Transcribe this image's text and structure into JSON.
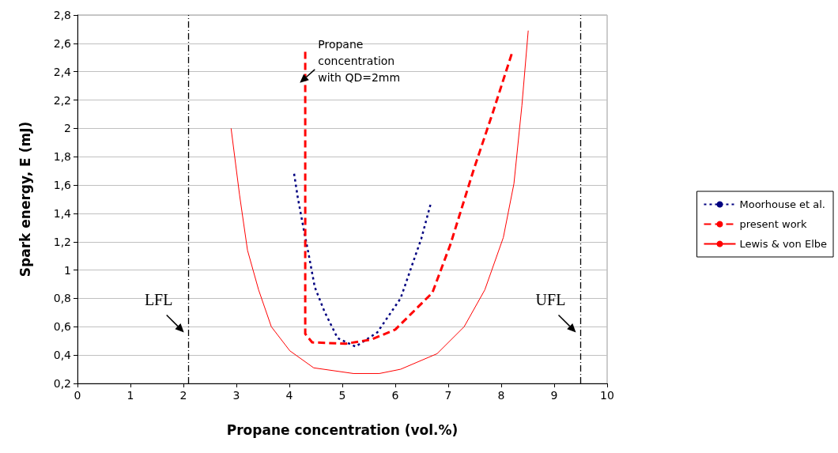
{
  "chart_data": {
    "type": "line",
    "xlabel": "Propane concentration (vol.%)",
    "ylabel": "Spark energy, E (mJ)",
    "xlim": [
      0,
      10
    ],
    "xticks": [
      0,
      1,
      2,
      3,
      4,
      5,
      6,
      7,
      8,
      9,
      10
    ],
    "ylim": [
      0.2,
      2.8
    ],
    "yticks": [
      {
        "value": 0.2,
        "label": "0,2"
      },
      {
        "value": 0.4,
        "label": "0,4"
      },
      {
        "value": 0.6,
        "label": "0,6"
      },
      {
        "value": 0.8,
        "label": "0,8"
      },
      1,
      {
        "value": 1.2,
        "label": "1,2"
      },
      {
        "value": 1.4,
        "label": "1,4"
      },
      {
        "value": 1.6,
        "label": "1,6"
      },
      {
        "value": 1.8,
        "label": "1,8"
      },
      2,
      {
        "value": 2.2,
        "label": "2,2"
      },
      {
        "value": 2.4,
        "label": "2,4"
      },
      {
        "value": 2.6,
        "label": "2,6"
      },
      {
        "value": 2.8,
        "label": "2,8"
      }
    ],
    "grid": "y",
    "legend": "right",
    "marker": "none",
    "series": [
      {
        "name": "Moorhouse et al.",
        "color": "#000080",
        "line_style": "dotted",
        "x": [
          4.09,
          4.16,
          4.28,
          4.36,
          4.48,
          4.66,
          4.91,
          5.25,
          5.66,
          6.1,
          6.34,
          6.49,
          6.67
        ],
        "values": [
          1.68,
          1.51,
          1.27,
          1.12,
          0.88,
          0.71,
          0.52,
          0.46,
          0.56,
          0.8,
          1.06,
          1.22,
          1.47
        ]
      },
      {
        "name": "present work",
        "color": "#ff0000",
        "line_style": "dashed",
        "x": [
          4.3,
          4.3,
          4.43,
          5.06,
          5.55,
          6.0,
          6.7,
          7.04,
          7.49,
          7.84,
          8.21
        ],
        "values": [
          2.54,
          0.55,
          0.49,
          0.48,
          0.51,
          0.58,
          0.84,
          1.18,
          1.72,
          2.11,
          2.54
        ]
      },
      {
        "name": "Lewis & von Elbe",
        "color": "#ff0000",
        "line_style": "solid",
        "x": [
          2.9,
          3.06,
          3.21,
          3.42,
          3.66,
          4.01,
          4.46,
          5.21,
          5.7,
          6.1,
          6.79,
          7.3,
          7.69,
          8.04,
          8.24,
          8.39,
          8.51
        ],
        "values": [
          2.0,
          1.53,
          1.14,
          0.86,
          0.6,
          0.43,
          0.31,
          0.27,
          0.27,
          0.3,
          0.41,
          0.6,
          0.86,
          1.23,
          1.61,
          2.16,
          2.69
        ]
      }
    ],
    "ref_lines": [
      {
        "axis": "x",
        "value": 2.1,
        "label": "LFL",
        "color": "#000000",
        "line_style": "dashdot"
      },
      {
        "axis": "x",
        "value": 9.5,
        "label": "UFL",
        "color": "#000000",
        "line_style": "dashdot"
      }
    ],
    "annotations": [
      "Propane concentration with QD=2mm"
    ]
  }
}
